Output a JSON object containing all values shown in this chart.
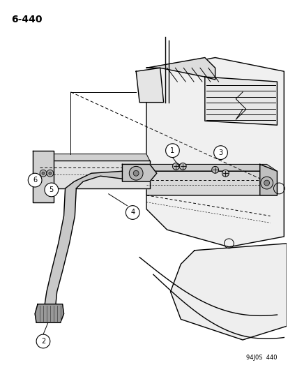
{
  "title": "6-440",
  "footer": "94J0S  440",
  "background_color": "#ffffff",
  "line_color": "#000000",
  "fig_width": 4.14,
  "fig_height": 5.33,
  "dpi": 100
}
